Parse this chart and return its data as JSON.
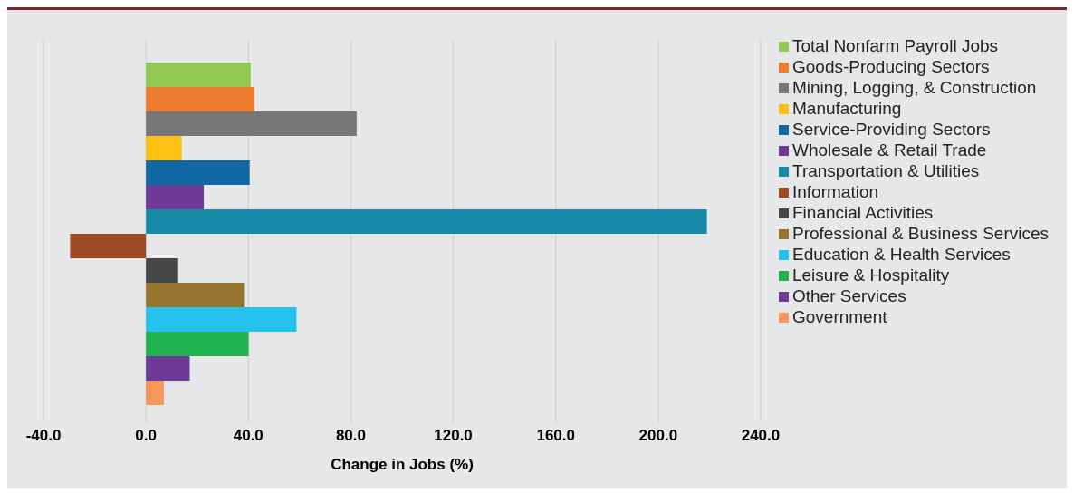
{
  "chart_data": {
    "type": "bar",
    "orientation": "horizontal",
    "xlabel": "Change in Jobs (%)",
    "categories": [
      null
    ],
    "series": [
      {
        "name": "Total Nonfarm Payroll Jobs",
        "color": "#92c955",
        "values": [
          40.9
        ]
      },
      {
        "name": "Goods-Producing Sectors",
        "color": "#ee7d31",
        "values": [
          42.4
        ]
      },
      {
        "name": "Mining, Logging, & Construction",
        "color": "#767779",
        "values": [
          82.3
        ]
      },
      {
        "name": "Manufacturing",
        "color": "#fcc111",
        "values": [
          14.0
        ]
      },
      {
        "name": "Service-Providing Sectors",
        "color": "#1267a5",
        "values": [
          40.5
        ]
      },
      {
        "name": "Wholesale & Retail Trade",
        "color": "#6d3a97",
        "values": [
          22.6
        ]
      },
      {
        "name": "Transportation & Utilities",
        "color": "#1889a6",
        "values": [
          219.0
        ]
      },
      {
        "name": "Information",
        "color": "#9d4a22",
        "values": [
          -29.6
        ]
      },
      {
        "name": "Financial Activities",
        "color": "#464749",
        "values": [
          12.6
        ]
      },
      {
        "name": "Professional & Business Services",
        "color": "#95752e",
        "values": [
          38.3
        ]
      },
      {
        "name": "Education & Health Services",
        "color": "#25c2f0",
        "values": [
          58.8
        ]
      },
      {
        "name": "Leisure & Hospitality",
        "color": "#20b151",
        "values": [
          40.1
        ]
      },
      {
        "name": "Other Services",
        "color": "#6d3a97",
        "values": [
          17.1
        ]
      },
      {
        "name": "Government",
        "color": "#f3975b",
        "values": [
          7.0
        ]
      }
    ],
    "xlim": [
      -40,
      240
    ],
    "xticks": [
      {
        "value": -40,
        "label": "-40.0"
      },
      {
        "value": 0,
        "label": "0.0"
      },
      {
        "value": 40,
        "label": "40.0"
      },
      {
        "value": 80,
        "label": "80.0"
      },
      {
        "value": 120,
        "label": "120.0"
      },
      {
        "value": 160,
        "label": "160.0"
      },
      {
        "value": 200,
        "label": "200.0"
      },
      {
        "value": 240,
        "label": "240.0"
      }
    ],
    "grid": "x",
    "legend": "right",
    "tick_labels": "x"
  }
}
